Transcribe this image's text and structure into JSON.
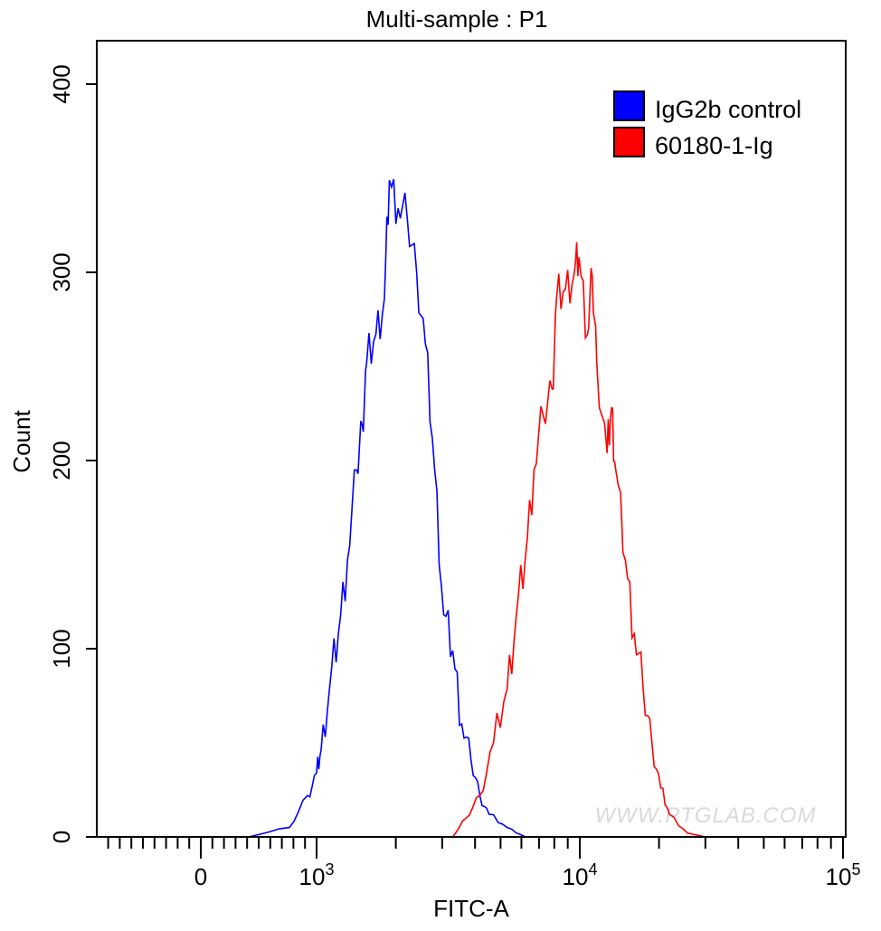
{
  "chart_data": {
    "type": "line",
    "title": "Multi-sample : P1",
    "xlabel": "FITC-A",
    "ylabel": "Count",
    "x_scale": "biexponential",
    "xlim": [
      -900,
      100000
    ],
    "ylim": [
      0,
      423
    ],
    "x_tick_labels": [
      {
        "value": 0,
        "base": "0",
        "exp": ""
      },
      {
        "value": 1000,
        "base": "10",
        "exp": "3"
      },
      {
        "value": 10000,
        "base": "10",
        "exp": "4"
      },
      {
        "value": 100000,
        "base": "10",
        "exp": "5"
      }
    ],
    "y_ticks": [
      0,
      100,
      200,
      300,
      400
    ],
    "y_tick_labels": [
      "0",
      "100",
      "200",
      "300",
      "400"
    ],
    "grid": false,
    "legend_position": "top-right",
    "series": [
      {
        "name": "IgG2b control",
        "color": "#0000ff",
        "points": [
          [
            414,
            0
          ],
          [
            766,
            5
          ],
          [
            922,
            22
          ],
          [
            1000,
            34
          ],
          [
            1040,
            46
          ],
          [
            1120,
            79
          ],
          [
            1210,
            108
          ],
          [
            1310,
            147
          ],
          [
            1420,
            195
          ],
          [
            1490,
            219
          ],
          [
            1550,
            252
          ],
          [
            1680,
            267
          ],
          [
            1810,
            286
          ],
          [
            1890,
            349
          ],
          [
            2040,
            334
          ],
          [
            2210,
            329
          ],
          [
            2400,
            300
          ],
          [
            2590,
            262
          ],
          [
            2810,
            195
          ],
          [
            3040,
            118
          ],
          [
            3290,
            99
          ],
          [
            3560,
            60
          ],
          [
            3860,
            41
          ],
          [
            4170,
            22
          ],
          [
            4520,
            12
          ],
          [
            5300,
            5
          ],
          [
            6200,
            0
          ]
        ]
      },
      {
        "name": "60180-1-Ig",
        "color": "#ff0000",
        "points": [
          [
            3290,
            0
          ],
          [
            3700,
            10
          ],
          [
            4170,
            22
          ],
          [
            4700,
            50
          ],
          [
            5300,
            79
          ],
          [
            5740,
            118
          ],
          [
            6200,
            147
          ],
          [
            6700,
            195
          ],
          [
            7260,
            224
          ],
          [
            7850,
            238
          ],
          [
            8160,
            286
          ],
          [
            8820,
            291
          ],
          [
            9540,
            300
          ],
          [
            9930,
            308
          ],
          [
            10700,
            267
          ],
          [
            11150,
            298
          ],
          [
            11600,
            252
          ],
          [
            12700,
            204
          ],
          [
            13200,
            228
          ],
          [
            13700,
            195
          ],
          [
            14900,
            147
          ],
          [
            16100,
            108
          ],
          [
            17400,
            79
          ],
          [
            18800,
            50
          ],
          [
            20300,
            26
          ],
          [
            21900,
            12
          ],
          [
            25700,
            2
          ],
          [
            30000,
            0
          ]
        ]
      }
    ],
    "watermark": "WWW.PTGLAB.COM"
  }
}
